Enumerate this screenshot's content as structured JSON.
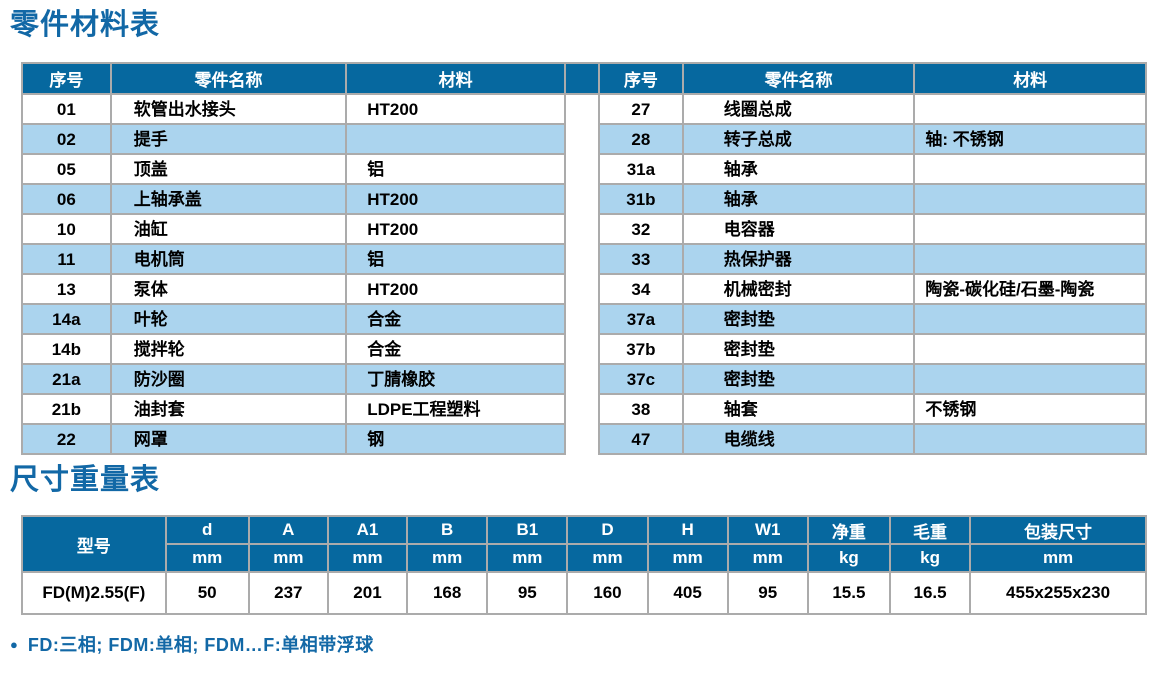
{
  "page": {
    "section1_title": "零件材料表",
    "section2_title": "尺寸重量表",
    "footnote_bullet": "●",
    "footnote": "FD:三相; FDM:单相; FDM…F:单相带浮球"
  },
  "colors": {
    "header_blue": "#06689f",
    "stripe_blue": "#abd4ee",
    "title_blue": "#1268a6",
    "border_gray": "#ababab"
  },
  "parts_table": {
    "headers": [
      "序号",
      "零件名称",
      "材料"
    ],
    "left_rows": [
      {
        "no": "01",
        "name": "软管出水接头",
        "material": "HT200"
      },
      {
        "no": "02",
        "name": "提手",
        "material": ""
      },
      {
        "no": "05",
        "name": "顶盖",
        "material": "铝"
      },
      {
        "no": "06",
        "name": "上轴承盖",
        "material": "HT200"
      },
      {
        "no": "10",
        "name": "油缸",
        "material": "HT200"
      },
      {
        "no": "11",
        "name": "电机筒",
        "material": "铝"
      },
      {
        "no": "13",
        "name": "泵体",
        "material": "HT200"
      },
      {
        "no": "14a",
        "name": "叶轮",
        "material": "合金"
      },
      {
        "no": "14b",
        "name": "搅拌轮",
        "material": "合金"
      },
      {
        "no": "21a",
        "name": "防沙圈",
        "material": "丁腈橡胶"
      },
      {
        "no": "21b",
        "name": "油封套",
        "material": "LDPE工程塑料"
      },
      {
        "no": "22",
        "name": "网罩",
        "material": "钢"
      }
    ],
    "right_rows": [
      {
        "no": "27",
        "name": "线圈总成",
        "material": ""
      },
      {
        "no": "28",
        "name": "转子总成",
        "material": "轴: 不锈钢"
      },
      {
        "no": "31a",
        "name": "轴承",
        "material": ""
      },
      {
        "no": "31b",
        "name": "轴承",
        "material": ""
      },
      {
        "no": "32",
        "name": "电容器",
        "material": ""
      },
      {
        "no": "33",
        "name": "热保护器",
        "material": ""
      },
      {
        "no": "34",
        "name": "机械密封",
        "material": "陶瓷-碳化硅/石墨-陶瓷"
      },
      {
        "no": "37a",
        "name": "密封垫",
        "material": ""
      },
      {
        "no": "37b",
        "name": "密封垫",
        "material": ""
      },
      {
        "no": "37c",
        "name": "密封垫",
        "material": ""
      },
      {
        "no": "38",
        "name": "轴套",
        "material": "不锈钢"
      },
      {
        "no": "47",
        "name": "电缆线",
        "material": ""
      }
    ]
  },
  "dimensions_table": {
    "model_header": "型号",
    "columns": [
      {
        "label": "d",
        "unit": "mm"
      },
      {
        "label": "A",
        "unit": "mm"
      },
      {
        "label": "A1",
        "unit": "mm"
      },
      {
        "label": "B",
        "unit": "mm"
      },
      {
        "label": "B1",
        "unit": "mm"
      },
      {
        "label": "D",
        "unit": "mm"
      },
      {
        "label": "H",
        "unit": "mm"
      },
      {
        "label": "W1",
        "unit": "mm"
      },
      {
        "label": "净重",
        "unit": "kg"
      },
      {
        "label": "毛重",
        "unit": "kg"
      },
      {
        "label": "包装尺寸",
        "unit": "mm"
      }
    ],
    "row": {
      "model": "FD(M)2.55(F)",
      "values": [
        "50",
        "237",
        "201",
        "168",
        "95",
        "160",
        "405",
        "95",
        "15.5",
        "16.5",
        "455x255x230"
      ]
    }
  }
}
